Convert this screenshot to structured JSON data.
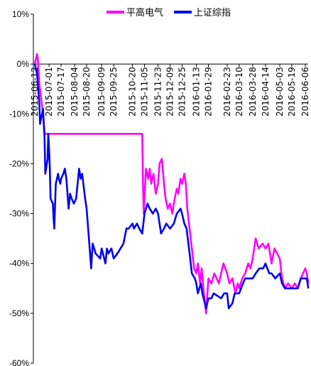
{
  "chart_data": {
    "type": "line",
    "title": "",
    "xlabel": "",
    "ylabel": "",
    "ylim": [
      -60,
      10
    ],
    "yticks": [
      10,
      0,
      -10,
      -20,
      -30,
      -40,
      -50,
      -60
    ],
    "ytick_labels": [
      "10%",
      "0%",
      "-10%",
      "-20%",
      "-30%",
      "-40%",
      "-50%",
      "-60%"
    ],
    "x_tick_labels": [
      "2015-06-12",
      "2015-07-01",
      "2015-07-17",
      "2015-08-04",
      "2015-08-20",
      "2015-09-09",
      "2015-09-25",
      "2015-10-20",
      "2015-11-05",
      "2015-11-23",
      "2015-12-09",
      "2015-12-25",
      "2016-01-13",
      "2016-01-29",
      "2016-02-23",
      "2016-03-10",
      "2016-03-28",
      "2016-04-14",
      "2016-05-03",
      "2016-05-19",
      "2016-06-06"
    ],
    "legend_position": "top",
    "grid": false,
    "series": [
      {
        "name": "平高电气",
        "color": "#ff00ff",
        "points": [
          [
            "2015-06-12",
            0
          ],
          [
            "2015-06-15",
            2
          ],
          [
            "2015-06-16",
            1
          ],
          [
            "2015-06-18",
            -4
          ],
          [
            "2015-06-23",
            -10
          ],
          [
            "2015-06-25",
            -14
          ],
          [
            "2015-07-01",
            -14
          ],
          [
            "2015-07-17",
            -14
          ],
          [
            "2015-08-04",
            -14
          ],
          [
            "2015-08-20",
            -14
          ],
          [
            "2015-09-09",
            -14
          ],
          [
            "2015-09-25",
            -14
          ],
          [
            "2015-10-20",
            -14
          ],
          [
            "2015-11-02",
            -14
          ],
          [
            "2015-11-03",
            -24
          ],
          [
            "2015-11-04",
            -30
          ],
          [
            "2015-11-05",
            -27
          ],
          [
            "2015-11-07",
            -21
          ],
          [
            "2015-11-10",
            -23
          ],
          [
            "2015-11-12",
            -21
          ],
          [
            "2015-11-14",
            -24
          ],
          [
            "2015-11-17",
            -22
          ],
          [
            "2015-11-20",
            -26
          ],
          [
            "2015-11-23",
            -24
          ],
          [
            "2015-11-25",
            -20
          ],
          [
            "2015-11-28",
            -19
          ],
          [
            "2015-12-01",
            -24
          ],
          [
            "2015-12-03",
            -27
          ],
          [
            "2015-12-06",
            -29
          ],
          [
            "2015-12-09",
            -28
          ],
          [
            "2015-12-12",
            -30
          ],
          [
            "2015-12-15",
            -27
          ],
          [
            "2015-12-18",
            -25
          ],
          [
            "2015-12-20",
            -26
          ],
          [
            "2015-12-23",
            -23
          ],
          [
            "2015-12-25",
            -24
          ],
          [
            "2015-12-28",
            -22
          ],
          [
            "2015-12-30",
            -24
          ],
          [
            "2016-01-01",
            -29
          ],
          [
            "2016-01-04",
            -33
          ],
          [
            "2016-01-07",
            -37
          ],
          [
            "2016-01-10",
            -41
          ],
          [
            "2016-01-13",
            -42
          ],
          [
            "2016-01-15",
            -40
          ],
          [
            "2016-01-18",
            -44
          ],
          [
            "2016-01-20",
            -41
          ],
          [
            "2016-01-23",
            -46
          ],
          [
            "2016-01-26",
            -50
          ],
          [
            "2016-01-29",
            -43
          ],
          [
            "2016-02-02",
            -44
          ],
          [
            "2016-02-06",
            -42
          ],
          [
            "2016-02-12",
            -44
          ],
          [
            "2016-02-18",
            -40
          ],
          [
            "2016-02-23",
            -42
          ],
          [
            "2016-02-26",
            -44
          ],
          [
            "2016-03-01",
            -43
          ],
          [
            "2016-03-05",
            -46
          ],
          [
            "2016-03-08",
            -44
          ],
          [
            "2016-03-10",
            -45
          ],
          [
            "2016-03-14",
            -43
          ],
          [
            "2016-03-18",
            -42
          ],
          [
            "2016-03-22",
            -40
          ],
          [
            "2016-03-25",
            -41
          ],
          [
            "2016-03-28",
            -39
          ],
          [
            "2016-04-01",
            -35
          ],
          [
            "2016-04-05",
            -37
          ],
          [
            "2016-04-10",
            -36
          ],
          [
            "2016-04-14",
            -37
          ],
          [
            "2016-04-18",
            -36
          ],
          [
            "2016-04-22",
            -40
          ],
          [
            "2016-04-26",
            -37
          ],
          [
            "2016-05-03",
            -39
          ],
          [
            "2016-05-06",
            -43
          ],
          [
            "2016-05-10",
            -45
          ],
          [
            "2016-05-14",
            -44
          ],
          [
            "2016-05-19",
            -45
          ],
          [
            "2016-05-23",
            -44
          ],
          [
            "2016-05-27",
            -45
          ],
          [
            "2016-05-31",
            -43
          ],
          [
            "2016-06-03",
            -42
          ],
          [
            "2016-06-06",
            -41
          ],
          [
            "2016-06-08",
            -42
          ],
          [
            "2016-06-10",
            -44
          ]
        ]
      },
      {
        "name": "上证综指",
        "color": "#0000ee",
        "points": [
          [
            "2015-06-12",
            0
          ],
          [
            "2015-06-15",
            -2
          ],
          [
            "2015-06-16",
            -4
          ],
          [
            "2015-06-18",
            -8
          ],
          [
            "2015-06-19",
            -12
          ],
          [
            "2015-06-23",
            -9
          ],
          [
            "2015-06-25",
            -15
          ],
          [
            "2015-06-26",
            -22
          ],
          [
            "2015-06-29",
            -19
          ],
          [
            "2015-06-30",
            -14
          ],
          [
            "2015-07-01",
            -17
          ],
          [
            "2015-07-02",
            -21
          ],
          [
            "2015-07-03",
            -27
          ],
          [
            "2015-07-06",
            -28
          ],
          [
            "2015-07-07",
            -31
          ],
          [
            "2015-07-08",
            -33
          ],
          [
            "2015-07-09",
            -28
          ],
          [
            "2015-07-10",
            -24
          ],
          [
            "2015-07-13",
            -22
          ],
          [
            "2015-07-14",
            -23
          ],
          [
            "2015-07-16",
            -24
          ],
          [
            "2015-07-17",
            -23
          ],
          [
            "2015-07-20",
            -22
          ],
          [
            "2015-07-22",
            -21
          ],
          [
            "2015-07-24",
            -23
          ],
          [
            "2015-07-27",
            -29
          ],
          [
            "2015-07-29",
            -26
          ],
          [
            "2015-07-31",
            -27
          ],
          [
            "2015-08-03",
            -28
          ],
          [
            "2015-08-06",
            -27
          ],
          [
            "2015-08-10",
            -21
          ],
          [
            "2015-08-12",
            -23
          ],
          [
            "2015-08-14",
            -22
          ],
          [
            "2015-08-18",
            -27
          ],
          [
            "2015-08-20",
            -29
          ],
          [
            "2015-08-24",
            -37
          ],
          [
            "2015-08-26",
            -41
          ],
          [
            "2015-08-28",
            -36
          ],
          [
            "2015-09-01",
            -38
          ],
          [
            "2015-09-07",
            -39
          ],
          [
            "2015-09-09",
            -37
          ],
          [
            "2015-09-14",
            -40
          ],
          [
            "2015-09-16",
            -37
          ],
          [
            "2015-09-18",
            -38
          ],
          [
            "2015-09-22",
            -37
          ],
          [
            "2015-09-25",
            -39
          ],
          [
            "2015-09-30",
            -38
          ],
          [
            "2015-10-08",
            -36
          ],
          [
            "2015-10-12",
            -33
          ],
          [
            "2015-10-15",
            -33
          ],
          [
            "2015-10-20",
            -32
          ],
          [
            "2015-10-22",
            -33
          ],
          [
            "2015-10-26",
            -32
          ],
          [
            "2015-10-29",
            -33
          ],
          [
            "2015-11-02",
            -34
          ],
          [
            "2015-11-05",
            -30
          ],
          [
            "2015-11-09",
            -28
          ],
          [
            "2015-11-12",
            -29
          ],
          [
            "2015-11-16",
            -30
          ],
          [
            "2015-11-20",
            -29
          ],
          [
            "2015-11-23",
            -30
          ],
          [
            "2015-11-27",
            -34
          ],
          [
            "2015-12-01",
            -33
          ],
          [
            "2015-12-04",
            -32
          ],
          [
            "2015-12-09",
            -33
          ],
          [
            "2015-12-14",
            -32
          ],
          [
            "2015-12-18",
            -30
          ],
          [
            "2015-12-23",
            -29
          ],
          [
            "2015-12-25",
            -30
          ],
          [
            "2015-12-28",
            -32
          ],
          [
            "2015-12-31",
            -33
          ],
          [
            "2016-01-04",
            -38
          ],
          [
            "2016-01-07",
            -42
          ],
          [
            "2016-01-11",
            -43
          ],
          [
            "2016-01-13",
            -44
          ],
          [
            "2016-01-15",
            -46
          ],
          [
            "2016-01-19",
            -44
          ],
          [
            "2016-01-21",
            -46
          ],
          [
            "2016-01-26",
            -49
          ],
          [
            "2016-01-29",
            -47
          ],
          [
            "2016-02-02",
            -47
          ],
          [
            "2016-02-05",
            -46
          ],
          [
            "2016-02-15",
            -47
          ],
          [
            "2016-02-19",
            -46
          ],
          [
            "2016-02-23",
            -46
          ],
          [
            "2016-02-25",
            -49
          ],
          [
            "2016-03-01",
            -48
          ],
          [
            "2016-03-04",
            -46
          ],
          [
            "2016-03-10",
            -46
          ],
          [
            "2016-03-15",
            -44
          ],
          [
            "2016-03-18",
            -43
          ],
          [
            "2016-03-23",
            -43
          ],
          [
            "2016-03-28",
            -43
          ],
          [
            "2016-04-01",
            -42
          ],
          [
            "2016-04-06",
            -41
          ],
          [
            "2016-04-11",
            -41
          ],
          [
            "2016-04-14",
            -40
          ],
          [
            "2016-04-19",
            -42
          ],
          [
            "2016-04-22",
            -42
          ],
          [
            "2016-04-27",
            -43
          ],
          [
            "2016-05-03",
            -42
          ],
          [
            "2016-05-06",
            -44
          ],
          [
            "2016-05-10",
            -45
          ],
          [
            "2016-05-16",
            -45
          ],
          [
            "2016-05-19",
            -45
          ],
          [
            "2016-05-24",
            -45
          ],
          [
            "2016-05-27",
            -45
          ],
          [
            "2016-05-31",
            -43
          ],
          [
            "2016-06-03",
            -43
          ],
          [
            "2016-06-06",
            -43
          ],
          [
            "2016-06-08",
            -43
          ],
          [
            "2016-06-10",
            -45
          ]
        ]
      }
    ]
  }
}
